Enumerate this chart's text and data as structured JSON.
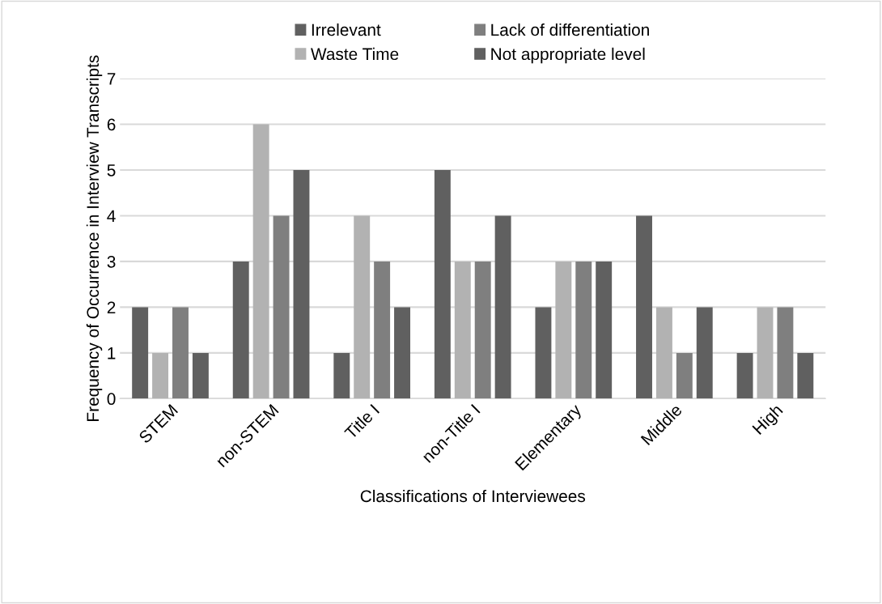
{
  "chart_data": {
    "type": "bar",
    "xlabel": "Classifications of Interviewees",
    "ylabel": "Frequency of Occurrence in Interview Transcripts",
    "categories": [
      "STEM",
      "non-STEM",
      "Title I",
      "non-Title I",
      "Elementary",
      "Middle",
      "High"
    ],
    "series": [
      {
        "name": "Irrelevant",
        "color": "#606060",
        "values": [
          2,
          3,
          1,
          5,
          2,
          4,
          1
        ]
      },
      {
        "name": "Waste Time",
        "color": "#b2b2b2",
        "values": [
          1,
          6,
          4,
          3,
          3,
          2,
          2
        ]
      },
      {
        "name": "Lack of differentiation",
        "color": "#7f7f7f",
        "values": [
          2,
          4,
          3,
          3,
          3,
          1,
          2
        ]
      },
      {
        "name": "Not appropriate level",
        "color": "#606060",
        "values": [
          1,
          5,
          2,
          4,
          3,
          2,
          1
        ]
      }
    ],
    "ylim": [
      0,
      7
    ],
    "yticks": [
      0,
      1,
      2,
      3,
      4,
      5,
      6,
      7
    ],
    "grid": "y",
    "legend": "top"
  }
}
